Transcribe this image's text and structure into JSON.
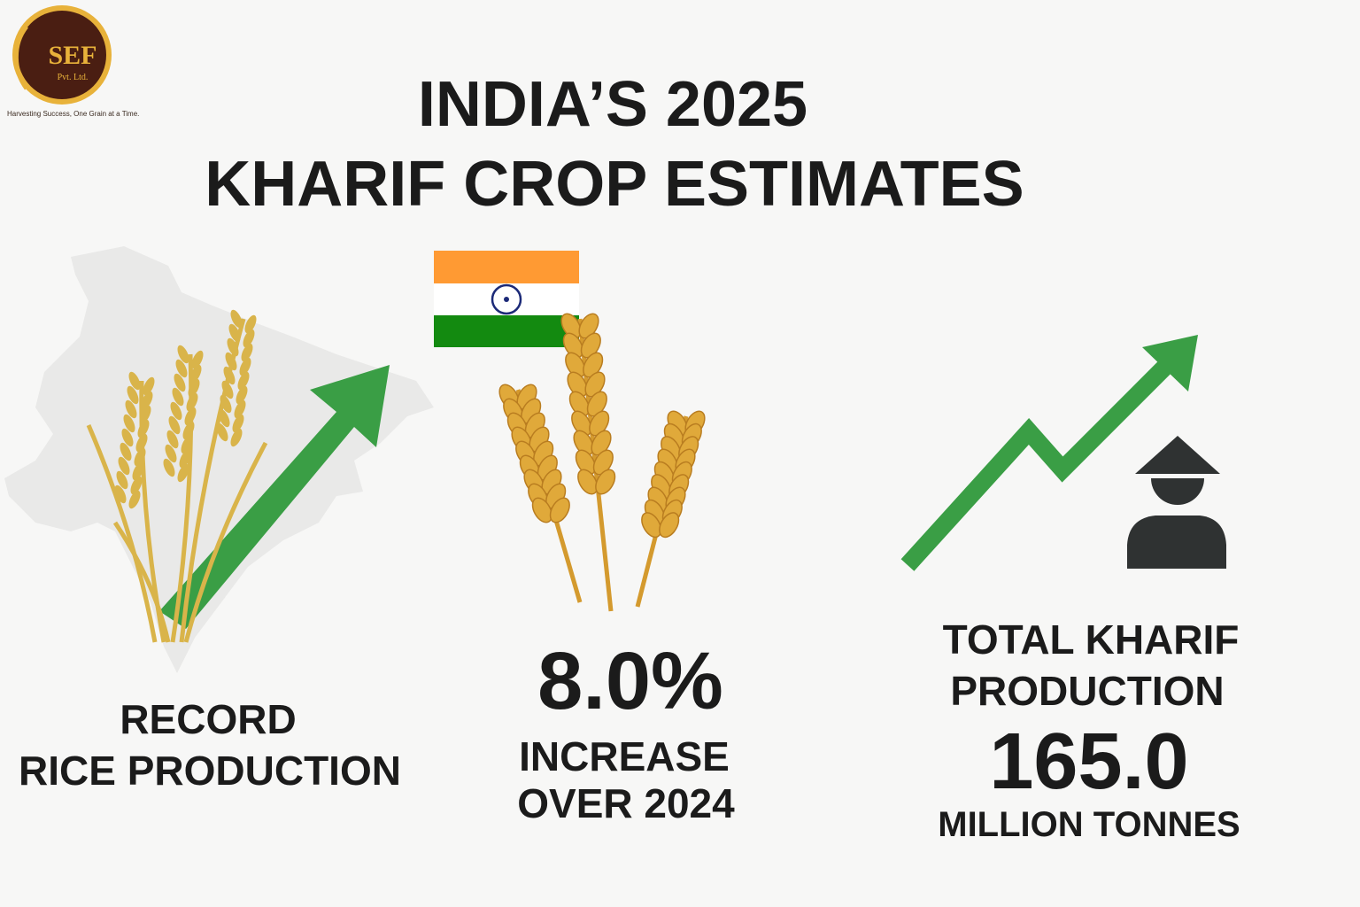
{
  "logo": {
    "name": "SEF",
    "suffix": "Pvt. Ltd.",
    "tagline": "Harvesting Success, One Grain at a Time."
  },
  "title": {
    "line1": "INDIA’S 2025",
    "line2": "KHARIF CROP ESTIMATES"
  },
  "panels": [
    {
      "lines": [
        "RECORD",
        "RICE PRODUCTION"
      ]
    },
    {
      "figure": "8.0%",
      "lines": [
        "INCREASE",
        "OVER 2024"
      ]
    },
    {
      "lines": [
        "TOTAL KHARIF",
        "PRODUCTION"
      ],
      "figure": "165.0",
      "unit": "MILLION TONNES"
    }
  ]
}
